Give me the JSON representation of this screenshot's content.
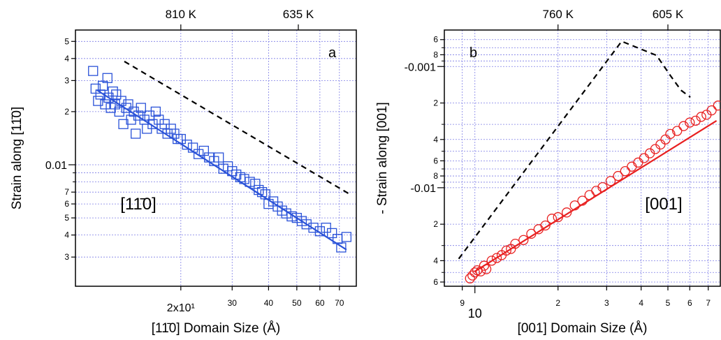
{
  "chart_data": [
    {
      "type": "scatter",
      "log_x": true,
      "log_y": true,
      "grid": true,
      "xlabel": "[11̄0] Domain Size (Å)",
      "ylabel": "Strain along [11̄0]",
      "panel_label": "a",
      "region_label": "[11̄0]",
      "xlim": [
        8.7,
        80
      ],
      "ylim": [
        0.00205,
        0.058
      ],
      "xticks": [
        {
          "value": 20,
          "label": "2x10¹"
        },
        30,
        40,
        50,
        60,
        70
      ],
      "yticks": [
        {
          "value": 0.05,
          "label": "5"
        },
        {
          "value": 0.04,
          "label": "4"
        },
        {
          "value": 0.03,
          "label": "3"
        },
        {
          "value": 0.02,
          "label": "2"
        },
        0.01,
        {
          "value": 0.007,
          "label": "7"
        },
        {
          "value": 0.006,
          "label": "6"
        },
        {
          "value": 0.005,
          "label": "5"
        },
        {
          "value": 0.004,
          "label": "4"
        },
        {
          "value": 0.003,
          "label": "3"
        }
      ],
      "yminor": [
        0.008,
        0.009
      ],
      "x2ticks": [
        {
          "x": 20,
          "label": "810 K"
        },
        {
          "x": 50.6,
          "label": "635 K"
        }
      ],
      "series": [
        {
          "type": "scatter",
          "marker": "square",
          "color": "#2a52d8",
          "x": [
            10.0,
            10.2,
            10.4,
            10.6,
            10.8,
            11.0,
            11.2,
            11.3,
            11.5,
            11.7,
            11.9,
            12.0,
            12.3,
            12.5,
            12.7,
            13.0,
            13.2,
            13.5,
            13.8,
            14.0,
            14.3,
            14.6,
            15.0,
            15.3,
            15.6,
            16.0,
            16.4,
            16.8,
            17.2,
            17.6,
            18.0,
            18.5,
            19.0,
            19.5,
            20.0,
            21.0,
            22.0,
            23.0,
            24.0,
            25.0,
            26.0,
            27.0,
            28.0,
            29.0,
            30.0,
            31.0,
            32.0,
            33.0,
            34.5,
            36.0,
            37.0,
            38.0,
            39.0,
            40.0,
            41.5,
            43.0,
            44.5,
            46.0,
            48.0,
            50.0,
            52.0,
            54.0,
            57.0,
            60.0,
            63.0,
            66.0,
            69.0,
            71.0,
            74.0
          ],
          "values": [
            0.034,
            0.027,
            0.023,
            0.025,
            0.028,
            0.022,
            0.031,
            0.024,
            0.021,
            0.026,
            0.022,
            0.025,
            0.02,
            0.023,
            0.017,
            0.021,
            0.022,
            0.018,
            0.02,
            0.015,
            0.019,
            0.021,
            0.018,
            0.016,
            0.019,
            0.017,
            0.02,
            0.018,
            0.016,
            0.017,
            0.015,
            0.016,
            0.015,
            0.014,
            0.014,
            0.013,
            0.0125,
            0.0115,
            0.012,
            0.011,
            0.0105,
            0.011,
            0.0095,
            0.0098,
            0.0092,
            0.0088,
            0.0085,
            0.0083,
            0.008,
            0.0078,
            0.0072,
            0.007,
            0.0068,
            0.006,
            0.0062,
            0.0058,
            0.0055,
            0.0053,
            0.0051,
            0.005,
            0.0048,
            0.0046,
            0.0044,
            0.0042,
            0.0044,
            0.0041,
            0.0038,
            0.0034,
            0.0039
          ]
        },
        {
          "type": "line",
          "style": "solid",
          "color": "#2a52d8",
          "x": [
            10.3,
            74
          ],
          "values": [
            0.0265,
            0.0033
          ]
        },
        {
          "type": "line",
          "style": "dashed",
          "color": "#000000",
          "x": [
            12.8,
            75.8
          ],
          "values": [
            0.0385,
            0.00683
          ]
        }
      ]
    },
    {
      "type": "scatter",
      "log_x": true,
      "log_y": true,
      "grid": true,
      "xlabel": "[001] Domain Size (Å)",
      "ylabel": "- Strain along [001]",
      "panel_label": "b",
      "region_label": "[001]",
      "xlim": [
        7.75,
        77.4
      ],
      "ylim": [
        -0.065,
        -0.0005
      ],
      "xticks": [
        9,
        10,
        {
          "value": 20,
          "label": "2"
        },
        {
          "value": 30,
          "label": "3"
        },
        {
          "value": 40,
          "label": "4"
        },
        {
          "value": 50,
          "label": "5"
        },
        {
          "value": 60,
          "label": "6"
        },
        {
          "value": 70,
          "label": "7"
        }
      ],
      "yticks": [
        {
          "value": -0.0006,
          "label": "6"
        },
        {
          "value": -0.0008,
          "label": "8"
        },
        -0.001,
        {
          "value": -0.002,
          "label": "2"
        },
        {
          "value": -0.004,
          "label": "4"
        },
        {
          "value": -0.006,
          "label": "6"
        },
        {
          "value": -0.008,
          "label": "8"
        },
        -0.01,
        {
          "value": -0.02,
          "label": "2"
        },
        {
          "value": -0.04,
          "label": "4"
        },
        {
          "value": -0.06,
          "label": "6"
        }
      ],
      "yminor": [
        -0.0007,
        -0.0009,
        -0.003,
        -0.005,
        -0.007,
        -0.009,
        -0.03,
        -0.05
      ],
      "x2ticks": [
        {
          "x": 20,
          "label": "760 K"
        },
        {
          "x": 50,
          "label": "605 K"
        }
      ],
      "series": [
        {
          "type": "scatter",
          "marker": "circle",
          "color": "#e82020",
          "x": [
            9.6,
            9.8,
            10.0,
            10.2,
            10.5,
            10.8,
            11.0,
            11.5,
            12.0,
            12.5,
            13.0,
            13.5,
            14.0,
            15.0,
            16.0,
            17.0,
            18.0,
            19.0,
            20.0,
            21.5,
            23.0,
            24.5,
            26.0,
            27.5,
            29.0,
            31.0,
            33.0,
            35.0,
            37.0,
            39.0,
            41.0,
            43.0,
            45.0,
            47.0,
            49.0,
            51.0,
            54.0,
            57.0,
            60.0,
            63.0,
            66.0,
            69.0,
            72.0,
            76.0
          ],
          "values": [
            -0.056,
            -0.053,
            -0.05,
            -0.048,
            -0.049,
            -0.044,
            -0.047,
            -0.04,
            -0.038,
            -0.036,
            -0.033,
            -0.032,
            -0.029,
            -0.027,
            -0.024,
            -0.022,
            -0.0205,
            -0.018,
            -0.0175,
            -0.016,
            -0.014,
            -0.0128,
            -0.0115,
            -0.0106,
            -0.0099,
            -0.0088,
            -0.008,
            -0.0073,
            -0.0067,
            -0.0062,
            -0.0057,
            -0.0052,
            -0.0048,
            -0.0044,
            -0.004,
            -0.0036,
            -0.0034,
            -0.0031,
            -0.0029,
            -0.0028,
            -0.0026,
            -0.0025,
            -0.0023,
            -0.0021
          ]
        },
        {
          "type": "line",
          "style": "solid",
          "color": "#e82020",
          "x": [
            10,
            75
          ],
          "values": [
            -0.049,
            -0.0028
          ]
        },
        {
          "type": "line",
          "style": "dashed",
          "color": "#000000",
          "x": [
            8.74,
            34.0,
            45.5,
            51.2,
            55.8,
            60.3
          ],
          "values": [
            -0.0386,
            -0.00062,
            -0.00081,
            -0.0012,
            -0.00157,
            -0.00179
          ]
        }
      ]
    }
  ]
}
